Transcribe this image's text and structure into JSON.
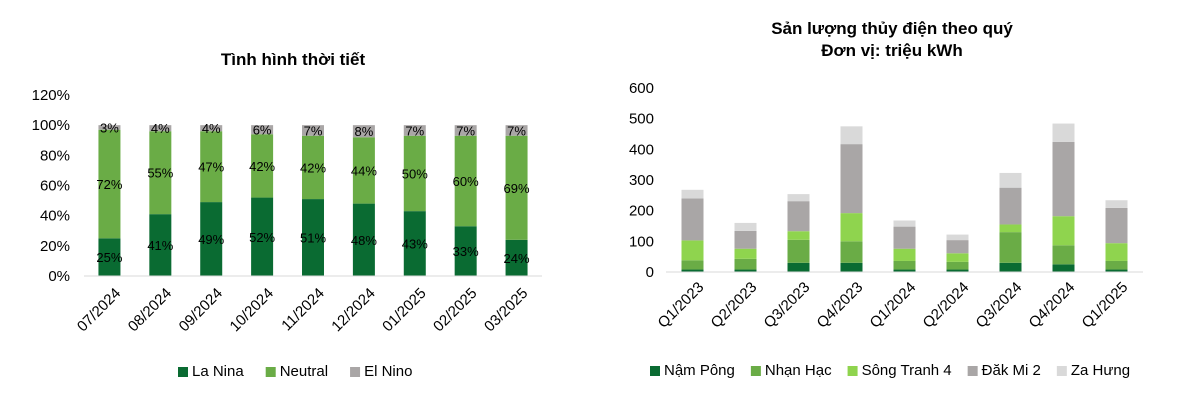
{
  "colors": {
    "dark_green": "#0a6b32",
    "mid_green": "#6aac46",
    "light_green": "#8fd44e",
    "gray": "#a9a6a6",
    "light_gray": "#d9d9d9"
  },
  "chart_data": [
    {
      "type": "bar",
      "stacked": true,
      "title": "Tình hình thời tiết",
      "categories": [
        "07/2024",
        "08/2024",
        "09/2024",
        "10/2024",
        "11/2024",
        "12/2024",
        "01/2025",
        "02/2025",
        "03/2025"
      ],
      "yticks": [
        "0%",
        "20%",
        "40%",
        "60%",
        "80%",
        "100%",
        "120%"
      ],
      "ylim": [
        0,
        120
      ],
      "grid": false,
      "legend_position": "bottom",
      "series": [
        {
          "name": "La Nina",
          "color": "#0a6b32",
          "values": [
            25,
            41,
            49,
            52,
            51,
            48,
            43,
            33,
            24
          ],
          "labels": [
            "25%",
            "41%",
            "49%",
            "52%",
            "51%",
            "48%",
            "43%",
            "33%",
            "24%"
          ]
        },
        {
          "name": "Neutral",
          "color": "#6aac46",
          "values": [
            72,
            55,
            47,
            42,
            42,
            44,
            50,
            60,
            69
          ],
          "labels": [
            "72%",
            "55%",
            "47%",
            "42%",
            "42%",
            "44%",
            "50%",
            "60%",
            "69%"
          ]
        },
        {
          "name": "El Nino",
          "color": "#a9a6a6",
          "values": [
            3,
            4,
            4,
            6,
            7,
            8,
            7,
            7,
            7
          ],
          "labels": [
            "3%",
            "4%",
            "4%",
            "6%",
            "7%",
            "8%",
            "7%",
            "7%",
            "7%"
          ]
        }
      ]
    },
    {
      "type": "bar",
      "stacked": true,
      "title": "Sản lượng thủy điện theo quý",
      "subtitle": "Đơn vị: triệu kWh",
      "categories": [
        "Q1/2023",
        "Q2/2023",
        "Q3/2023",
        "Q4/2023",
        "Q1/2024",
        "Q2/2024",
        "Q3/2024",
        "Q4/2024",
        "Q1/2025"
      ],
      "yticks": [
        "0",
        "100",
        "200",
        "300",
        "400",
        "500",
        "600"
      ],
      "ylim": [
        0,
        600
      ],
      "grid": false,
      "legend_position": "bottom",
      "series": [
        {
          "name": "Nậm Pông",
          "color": "#0a6b32",
          "values": [
            8,
            8,
            30,
            30,
            8,
            8,
            30,
            25,
            8
          ]
        },
        {
          "name": "Nhạn Hạc",
          "color": "#6aac46",
          "values": [
            30,
            35,
            75,
            70,
            28,
            25,
            100,
            62,
            28
          ]
        },
        {
          "name": "Sông Tranh 4",
          "color": "#8fd44e",
          "values": [
            65,
            33,
            28,
            92,
            40,
            28,
            25,
            95,
            58
          ]
        },
        {
          "name": "Đăk Mi 2",
          "color": "#a9a6a6",
          "values": [
            137,
            58,
            98,
            225,
            72,
            43,
            120,
            242,
            115
          ]
        },
        {
          "name": "Za Hưng",
          "color": "#d9d9d9",
          "values": [
            28,
            26,
            23,
            58,
            20,
            18,
            48,
            60,
            25
          ]
        }
      ]
    }
  ]
}
